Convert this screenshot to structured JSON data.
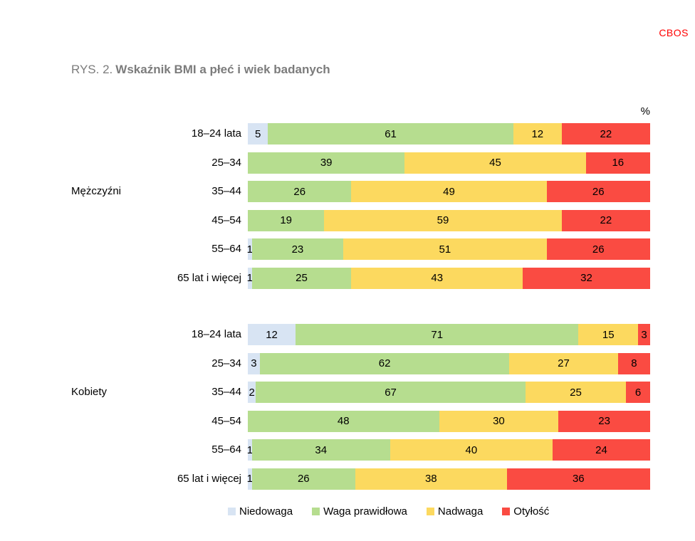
{
  "logo": "CBOS",
  "title": {
    "prefix": "RYS. 2.",
    "main": "Wskaźnik BMI a płeć i wiek badanych"
  },
  "chart_data": {
    "type": "bar",
    "orientation": "horizontal",
    "stacked": true,
    "title": "RYS. 2. Wskaźnik BMI a płeć i wiek badanych",
    "unit_label": "%",
    "xlim": [
      0,
      100
    ],
    "legend_position": "bottom",
    "value_labels": "inside",
    "series": [
      {
        "name": "Niedowaga",
        "color": "#D8E4F3"
      },
      {
        "name": "Waga prawidłowa",
        "color": "#B6DD8F"
      },
      {
        "name": "Nadwaga",
        "color": "#FCD95F"
      },
      {
        "name": "Otyłość",
        "color": "#FA4B42"
      }
    ],
    "groups": [
      {
        "label": "Mężczyźni",
        "categories": [
          "18–24 lata",
          "25–34",
          "35–44",
          "45–54",
          "55–64",
          "65 lat i więcej"
        ],
        "rows": [
          [
            5,
            61,
            12,
            22
          ],
          [
            0,
            39,
            45,
            16
          ],
          [
            0,
            26,
            49,
            26
          ],
          [
            0,
            19,
            59,
            22
          ],
          [
            1,
            23,
            51,
            26
          ],
          [
            1,
            25,
            43,
            32
          ]
        ]
      },
      {
        "label": "Kobiety",
        "categories": [
          "18–24 lata",
          "25–34",
          "35–44",
          "45–54",
          "55–64",
          "65 lat i więcej"
        ],
        "rows": [
          [
            12,
            71,
            15,
            3
          ],
          [
            3,
            62,
            27,
            8
          ],
          [
            2,
            67,
            25,
            6
          ],
          [
            0,
            48,
            30,
            23
          ],
          [
            1,
            34,
            40,
            24
          ],
          [
            1,
            26,
            38,
            36
          ]
        ]
      }
    ]
  }
}
